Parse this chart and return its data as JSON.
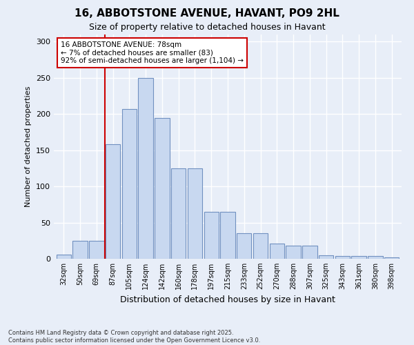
{
  "title": "16, ABBOTSTONE AVENUE, HAVANT, PO9 2HL",
  "subtitle": "Size of property relative to detached houses in Havant",
  "xlabel": "Distribution of detached houses by size in Havant",
  "ylabel": "Number of detached properties",
  "categories": [
    "32sqm",
    "50sqm",
    "69sqm",
    "87sqm",
    "105sqm",
    "124sqm",
    "142sqm",
    "160sqm",
    "178sqm",
    "197sqm",
    "215sqm",
    "233sqm",
    "252sqm",
    "270sqm",
    "288sqm",
    "307sqm",
    "325sqm",
    "343sqm",
    "361sqm",
    "380sqm",
    "398sqm"
  ],
  "values": [
    6,
    25,
    25,
    158,
    207,
    250,
    195,
    125,
    125,
    65,
    65,
    35,
    35,
    21,
    18,
    18,
    5,
    4,
    4,
    4,
    2
  ],
  "bar_color": "#c8d8f0",
  "bar_edge_color": "#7090c0",
  "vline_color": "#cc0000",
  "vline_x": 2.5,
  "annotation_text": "16 ABBOTSTONE AVENUE: 78sqm\n← 7% of detached houses are smaller (83)\n92% of semi-detached houses are larger (1,104) →",
  "annotation_box_facecolor": "#ffffff",
  "annotation_box_edgecolor": "#cc0000",
  "ylim": [
    0,
    310
  ],
  "yticks": [
    0,
    50,
    100,
    150,
    200,
    250,
    300
  ],
  "footer": "Contains HM Land Registry data © Crown copyright and database right 2025.\nContains public sector information licensed under the Open Government Licence v3.0.",
  "bg_color": "#e8eef8",
  "grid_color": "#ffffff",
  "title_fontsize": 11,
  "subtitle_fontsize": 9,
  "ylabel_fontsize": 8,
  "xlabel_fontsize": 9
}
